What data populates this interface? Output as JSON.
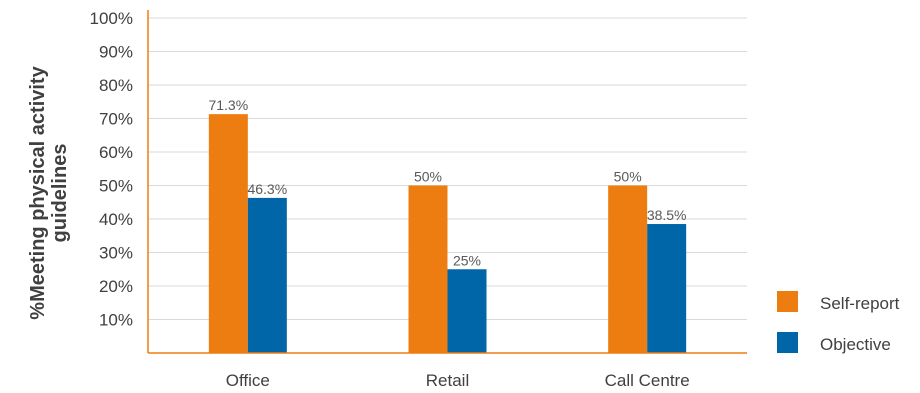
{
  "chart_data": {
    "type": "bar",
    "categories": [
      "Office",
      "Retail",
      "Call Centre"
    ],
    "series": [
      {
        "name": "Self-report",
        "values": [
          71.3,
          50,
          50
        ],
        "labels": [
          "71.3%",
          "50%",
          "50%"
        ],
        "color": "#EE7D11"
      },
      {
        "name": "Objective",
        "values": [
          46.3,
          25,
          38.5
        ],
        "labels": [
          "46.3%",
          "25%",
          "38.5%"
        ],
        "color": "#0066A8"
      }
    ],
    "ylabel_lines": [
      "%Meeting physical activity",
      "guidelines"
    ],
    "ylim": [
      0,
      100
    ],
    "yticks": [
      10,
      20,
      30,
      40,
      50,
      60,
      70,
      80,
      90,
      100
    ],
    "ytick_labels": [
      "10%",
      "20%",
      "30%",
      "40%",
      "50%",
      "60%",
      "70%",
      "80%",
      "90%",
      "100%"
    ],
    "grid": true,
    "legend_position": "bottom-right",
    "colors": {
      "axis": "#EE7D11",
      "grid": "#D9D9D9"
    }
  }
}
